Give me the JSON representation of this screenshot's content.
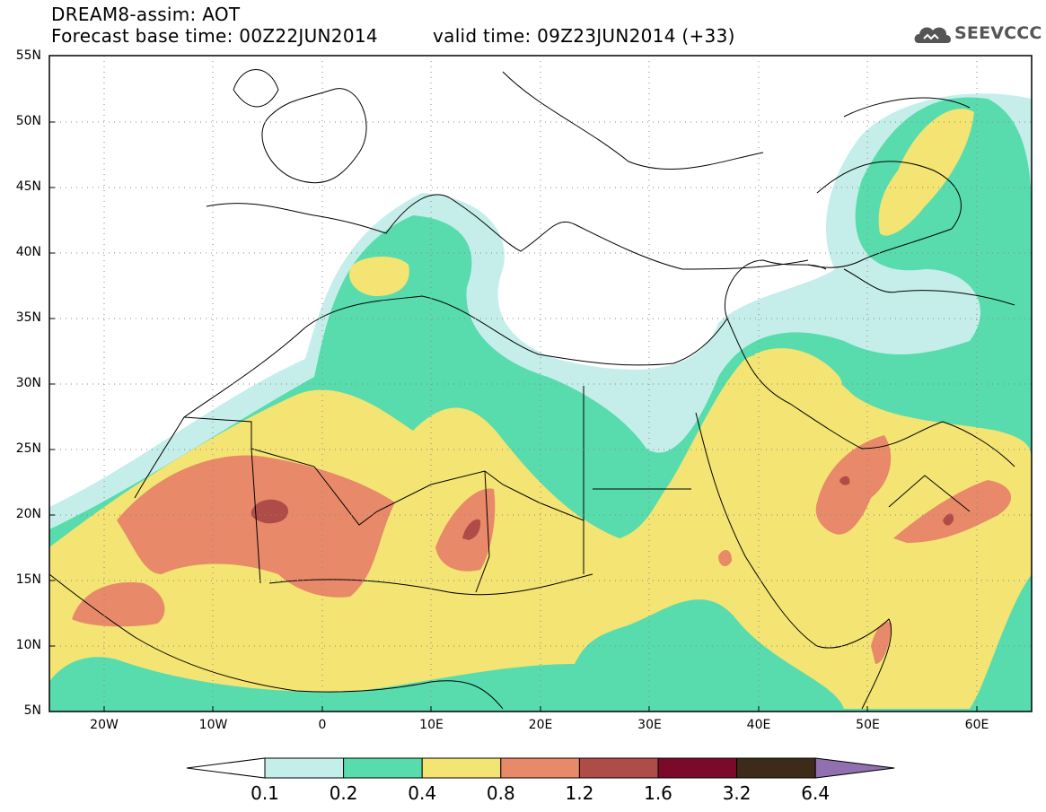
{
  "header": {
    "title": "DREAM8-assim: AOT",
    "forecast_base": "Forecast base time: 00Z22JUN2014",
    "valid_time": "valid time: 09Z23JUN2014 (+33)",
    "logo_text": "SEEVCCC",
    "logo_icon": "cloud-logo-icon"
  },
  "map": {
    "lon_range": [
      -25,
      65
    ],
    "lat_range": [
      5,
      55
    ],
    "lat_labels": [
      "55N",
      "50N",
      "45N",
      "40N",
      "35N",
      "30N",
      "25N",
      "20N",
      "15N",
      "10N",
      "5N"
    ],
    "lon_labels": [
      "20W",
      "10W",
      "0",
      "10E",
      "20E",
      "30E",
      "40E",
      "50E",
      "60E"
    ],
    "grid": "dotted",
    "variable": "Aerosol Optical Thickness"
  },
  "colorbar": {
    "labels": [
      "0.1",
      "0.2",
      "0.4",
      "0.8",
      "1.2",
      "1.6",
      "3.2",
      "6.4"
    ],
    "colors": [
      "#ffffff",
      "#c5eeea",
      "#58dcae",
      "#f3e473",
      "#e8896a",
      "#b04c47",
      "#7b0a2a",
      "#3e2a18",
      "#9070b0"
    ],
    "extend": "both"
  }
}
